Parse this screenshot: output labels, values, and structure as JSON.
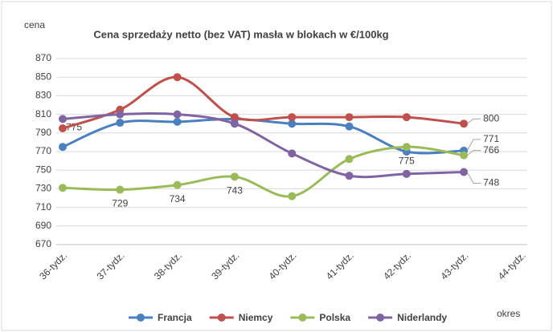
{
  "chart_data": {
    "type": "line",
    "title": "Cena sprzedaży netto (bez VAT) masła w blokach w €/100kg",
    "y_label": "cena",
    "x_label": "okres",
    "categories": [
      "36-tydz.",
      "37-tydz.",
      "38-tydz.",
      "39-tydz.",
      "40-tydz.",
      "41-tydz.",
      "42-tydz.",
      "43-tydz.",
      "44-tydz."
    ],
    "series": [
      {
        "name": "Francja",
        "color": "#4a7fc1",
        "values": [
          775,
          801,
          802,
          805,
          800,
          797,
          770,
          771,
          null
        ],
        "value_labels": [
          "775",
          null,
          null,
          null,
          null,
          null,
          null,
          "771",
          null
        ]
      },
      {
        "name": "Niemcy",
        "color": "#c0504d",
        "values": [
          795,
          815,
          850,
          807,
          807,
          807,
          807,
          800,
          null
        ],
        "value_labels": [
          null,
          null,
          null,
          null,
          null,
          null,
          null,
          "800",
          null
        ]
      },
      {
        "name": "Polska",
        "color": "#9bbb59",
        "values": [
          731,
          729,
          734,
          743,
          722,
          762,
          775,
          766,
          null
        ],
        "value_labels": [
          null,
          "729",
          "734",
          "743",
          null,
          null,
          "775",
          "766",
          null
        ]
      },
      {
        "name": "Niderlandy",
        "color": "#8064a2",
        "values": [
          805,
          810,
          810,
          800,
          768,
          744,
          746,
          748,
          null
        ],
        "value_labels": [
          null,
          null,
          null,
          null,
          null,
          null,
          null,
          "748",
          null
        ]
      }
    ],
    "ylim": [
      670,
      870
    ],
    "yticks": [
      670,
      690,
      710,
      730,
      750,
      770,
      790,
      810,
      830,
      850,
      870
    ],
    "grid": true,
    "legend": "bottom",
    "smooth": true
  }
}
